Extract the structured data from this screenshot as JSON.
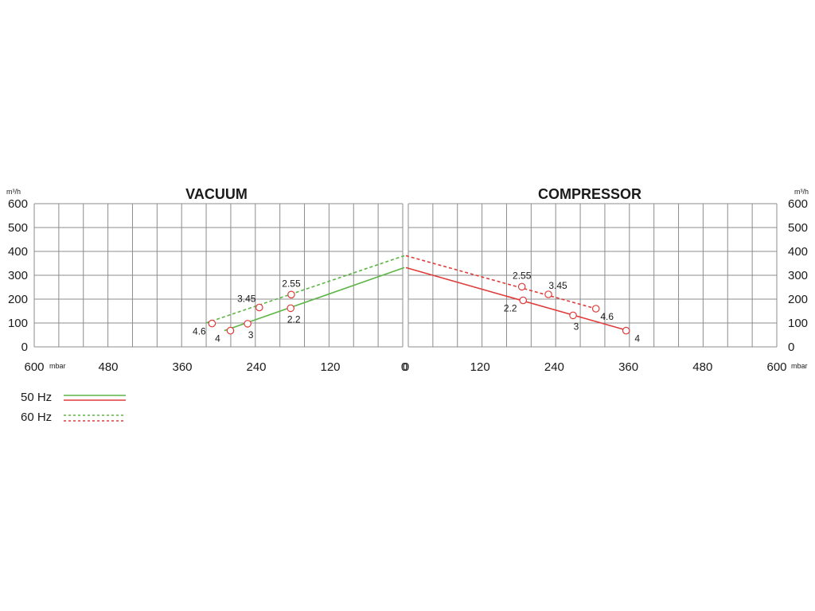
{
  "chart_data": [
    {
      "panel": "vacuum",
      "type": "line",
      "title": "VACUUM",
      "ylabel": "m³/h",
      "xunit": "mbar",
      "xlim": [
        600,
        0
      ],
      "ylim": [
        0,
        600
      ],
      "x_ticks": [
        "600",
        "480",
        "360",
        "240",
        "120",
        "0"
      ],
      "y_ticks": [
        "600",
        "500",
        "400",
        "300",
        "200",
        "100",
        "0"
      ],
      "grid": true,
      "series": [
        {
          "name": "50 Hz",
          "color": "#5cb545",
          "dash": false,
          "x": [
            0,
            293
          ],
          "y": [
            332,
            68
          ]
        },
        {
          "name": "60 Hz",
          "color": "#5cb545",
          "dash": true,
          "x": [
            0,
            325
          ],
          "y": [
            382,
            98
          ]
        }
      ],
      "points": [
        {
          "label": "2.2",
          "x": 185,
          "y": 162,
          "anchor": "below"
        },
        {
          "label": "3",
          "x": 255,
          "y": 97,
          "anchor": "below"
        },
        {
          "label": "4",
          "x": 283,
          "y": 68,
          "anchor": "below-left"
        },
        {
          "label": "2.55",
          "x": 184,
          "y": 219,
          "anchor": "above"
        },
        {
          "label": "3.45",
          "x": 236,
          "y": 165,
          "anchor": "above-left"
        },
        {
          "label": "4.6",
          "x": 313,
          "y": 98,
          "anchor": "below-left"
        }
      ]
    },
    {
      "panel": "compressor",
      "type": "line",
      "title": "COMPRESSOR",
      "ylabel": "m³/h",
      "xunit": "mbar",
      "xlim": [
        0,
        600
      ],
      "ylim": [
        0,
        600
      ],
      "x_ticks": [
        "0",
        "120",
        "240",
        "360",
        "480",
        "600"
      ],
      "y_ticks": [
        "600",
        "500",
        "400",
        "300",
        "200",
        "100",
        "0"
      ],
      "grid": true,
      "series": [
        {
          "name": "50 Hz",
          "color": "#e03b3b",
          "dash": false,
          "x": [
            0,
            360
          ],
          "y": [
            332,
            68
          ]
        },
        {
          "name": "60 Hz",
          "color": "#e03b3b",
          "dash": true,
          "x": [
            0,
            308
          ],
          "y": [
            382,
            160
          ]
        }
      ],
      "points": [
        {
          "label": "2.2",
          "x": 190,
          "y": 195,
          "anchor": "below-left"
        },
        {
          "label": "3",
          "x": 271,
          "y": 132,
          "anchor": "below"
        },
        {
          "label": "4",
          "x": 357,
          "y": 68,
          "anchor": "below-right"
        },
        {
          "label": "2.55",
          "x": 188,
          "y": 252,
          "anchor": "above"
        },
        {
          "label": "3.45",
          "x": 231,
          "y": 220,
          "anchor": "above-right"
        },
        {
          "label": "4.6",
          "x": 308,
          "y": 160,
          "anchor": "below-right"
        }
      ]
    }
  ],
  "legend": [
    {
      "label": "50 Hz",
      "dash": false,
      "colors": [
        "#5cb545",
        "#e03b3b"
      ]
    },
    {
      "label": "60 Hz",
      "dash": true,
      "colors": [
        "#5cb545",
        "#e03b3b"
      ]
    }
  ],
  "colors": {
    "grid": "#8c8c8c",
    "point_marker": "#e03b3b"
  }
}
